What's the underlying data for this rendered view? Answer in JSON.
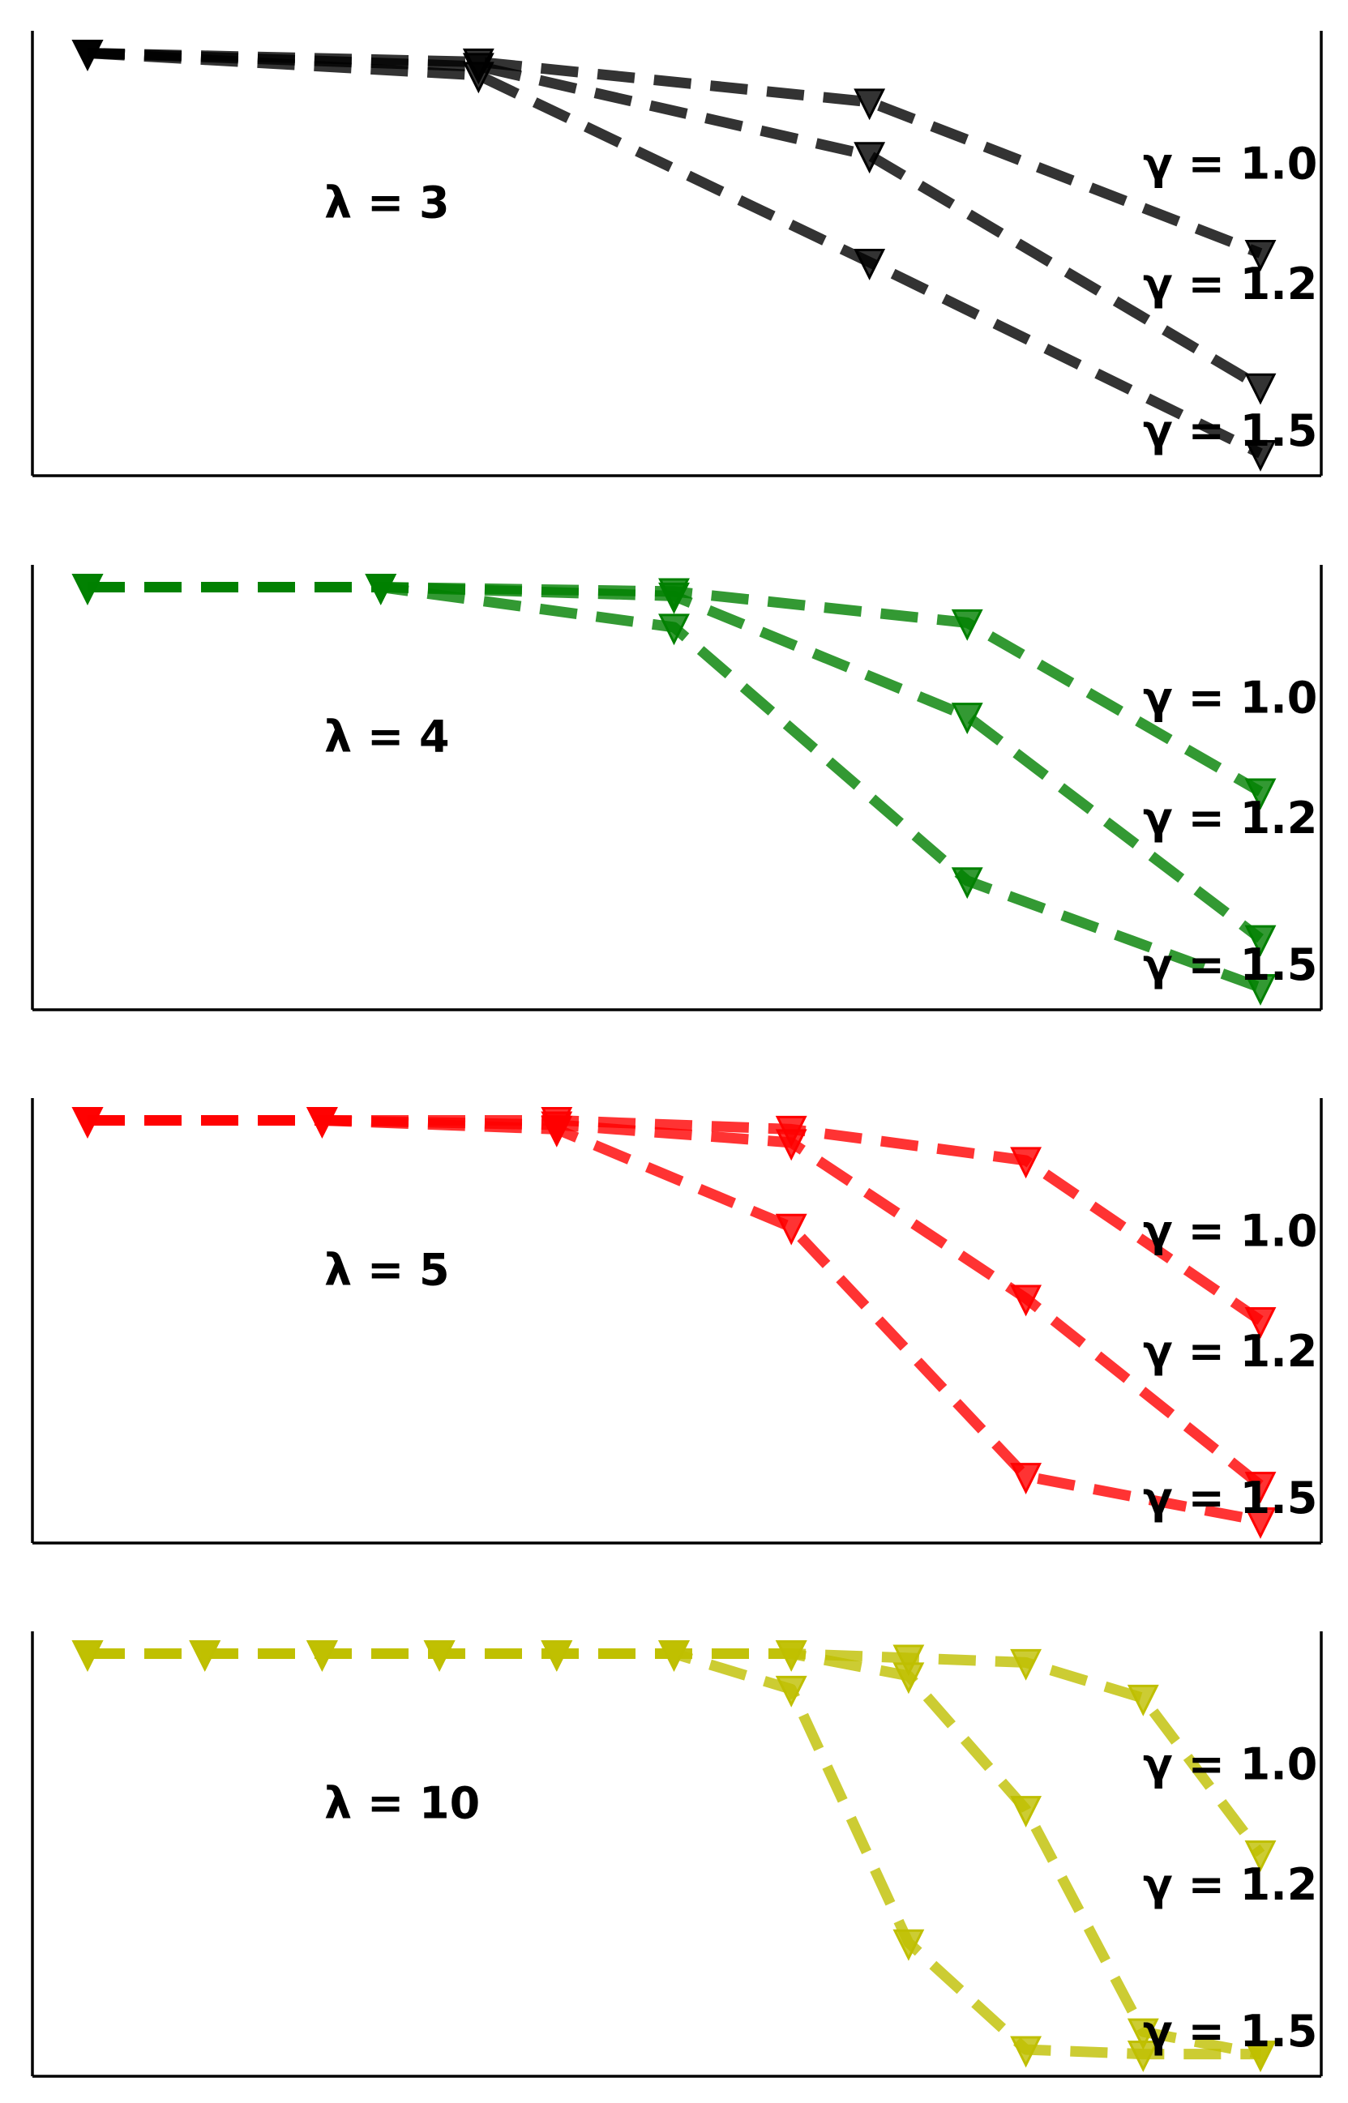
{
  "chart_data": [
    {
      "type": "line",
      "annotation": "λ = 3",
      "color": "#000000",
      "marker": "triangle-down",
      "linestyle": "dashed",
      "ylim": [
        0,
        1
      ],
      "x_range": [
        0,
        3
      ],
      "series": [
        {
          "label": "γ = 1.0",
          "points": [
            [
              0,
              0.95
            ],
            [
              1,
              0.93
            ],
            [
              2,
              0.84
            ],
            [
              3,
              0.5
            ]
          ]
        },
        {
          "label": "γ = 1.2",
          "points": [
            [
              0,
              0.95
            ],
            [
              1,
              0.92
            ],
            [
              2,
              0.72
            ],
            [
              3,
              0.2
            ]
          ]
        },
        {
          "label": "γ = 1.5",
          "points": [
            [
              0,
              0.95
            ],
            [
              1,
              0.9
            ],
            [
              2,
              0.48
            ],
            [
              3,
              0.05
            ]
          ]
        }
      ]
    },
    {
      "type": "line",
      "annotation": "λ = 4",
      "color": "#008000",
      "marker": "triangle-down",
      "linestyle": "dashed",
      "ylim": [
        0,
        1
      ],
      "x_range": [
        0,
        4
      ],
      "series": [
        {
          "label": "γ = 1.0",
          "points": [
            [
              0,
              0.95
            ],
            [
              1,
              0.95
            ],
            [
              2,
              0.94
            ],
            [
              3,
              0.87
            ],
            [
              4,
              0.49
            ]
          ]
        },
        {
          "label": "γ = 1.2",
          "points": [
            [
              0,
              0.95
            ],
            [
              1,
              0.95
            ],
            [
              2,
              0.93
            ],
            [
              3,
              0.66
            ],
            [
              4,
              0.16
            ]
          ]
        },
        {
          "label": "γ = 1.5",
          "points": [
            [
              0,
              0.95
            ],
            [
              1,
              0.95
            ],
            [
              2,
              0.86
            ],
            [
              3,
              0.29
            ],
            [
              4,
              0.05
            ]
          ]
        }
      ]
    },
    {
      "type": "line",
      "annotation": "λ = 5",
      "color": "#ff0000",
      "marker": "triangle-down",
      "linestyle": "dashed",
      "ylim": [
        0,
        1
      ],
      "x_range": [
        0,
        5
      ],
      "series": [
        {
          "label": "γ = 1.0",
          "points": [
            [
              0,
              0.95
            ],
            [
              1,
              0.95
            ],
            [
              2,
              0.95
            ],
            [
              3,
              0.93
            ],
            [
              4,
              0.86
            ],
            [
              5,
              0.5
            ]
          ]
        },
        {
          "label": "γ = 1.2",
          "points": [
            [
              0,
              0.95
            ],
            [
              1,
              0.95
            ],
            [
              2,
              0.94
            ],
            [
              3,
              0.9
            ],
            [
              4,
              0.55
            ],
            [
              5,
              0.13
            ]
          ]
        },
        {
          "label": "γ = 1.5",
          "points": [
            [
              0,
              0.95
            ],
            [
              1,
              0.95
            ],
            [
              2,
              0.93
            ],
            [
              3,
              0.71
            ],
            [
              4,
              0.15
            ],
            [
              5,
              0.05
            ]
          ]
        }
      ]
    },
    {
      "type": "line",
      "annotation": "λ = 10",
      "color": "#bfbf00",
      "marker": "triangle-down",
      "linestyle": "dashed",
      "ylim": [
        0,
        1
      ],
      "x_range": [
        0,
        10
      ],
      "series": [
        {
          "label": "γ = 1.0",
          "points": [
            [
              0,
              0.95
            ],
            [
              1,
              0.95
            ],
            [
              2,
              0.95
            ],
            [
              3,
              0.95
            ],
            [
              4,
              0.95
            ],
            [
              5,
              0.95
            ],
            [
              6,
              0.95
            ],
            [
              7,
              0.94
            ],
            [
              8,
              0.93
            ],
            [
              9,
              0.85
            ],
            [
              10,
              0.5
            ]
          ]
        },
        {
          "label": "γ = 1.2",
          "points": [
            [
              0,
              0.95
            ],
            [
              1,
              0.95
            ],
            [
              2,
              0.95
            ],
            [
              3,
              0.95
            ],
            [
              4,
              0.95
            ],
            [
              5,
              0.95
            ],
            [
              6,
              0.95
            ],
            [
              7,
              0.9
            ],
            [
              8,
              0.6
            ],
            [
              9,
              0.1
            ],
            [
              10,
              0.05
            ]
          ]
        },
        {
          "label": "γ = 1.5",
          "points": [
            [
              0,
              0.95
            ],
            [
              1,
              0.95
            ],
            [
              2,
              0.95
            ],
            [
              3,
              0.95
            ],
            [
              4,
              0.95
            ],
            [
              5,
              0.95
            ],
            [
              6,
              0.87
            ],
            [
              7,
              0.3
            ],
            [
              8,
              0.06
            ],
            [
              9,
              0.05
            ],
            [
              10,
              0.05
            ]
          ]
        }
      ]
    }
  ]
}
